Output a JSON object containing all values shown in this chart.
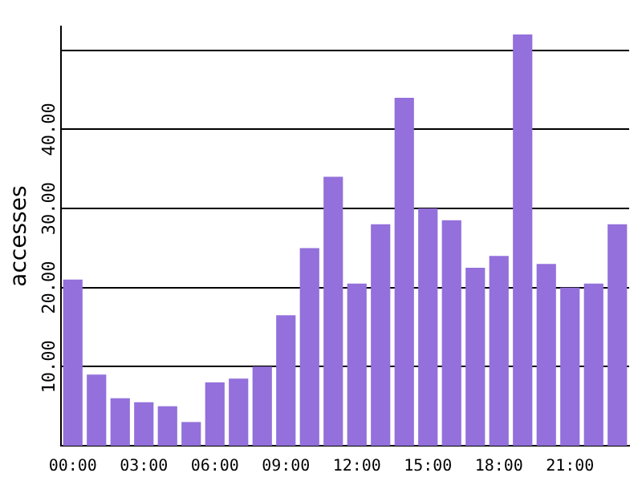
{
  "chart_data": {
    "type": "bar",
    "ylabel": "accesses",
    "categories": [
      "00:00",
      null,
      null,
      "03:00",
      null,
      null,
      "06:00",
      null,
      null,
      "09:00",
      null,
      null,
      "12:00",
      null,
      null,
      "15:00",
      null,
      null,
      "18:00",
      null,
      null,
      "21:00",
      null,
      null
    ],
    "values": [
      21,
      9,
      6,
      5.5,
      5,
      3,
      8,
      8.5,
      10,
      16.5,
      25,
      34,
      20.5,
      28,
      44,
      30,
      28.5,
      22.5,
      24,
      52,
      23,
      20,
      20.5,
      28
    ],
    "color": "#9370db",
    "ylim": [
      0,
      53
    ],
    "yticks": [
      {
        "value": 10,
        "label": "10.00"
      },
      {
        "value": 20,
        "label": "20.00"
      },
      {
        "value": 30,
        "label": "30.00"
      },
      {
        "value": 40,
        "label": "40.00"
      },
      {
        "value": 50,
        "label": null
      }
    ],
    "grid": "y"
  }
}
